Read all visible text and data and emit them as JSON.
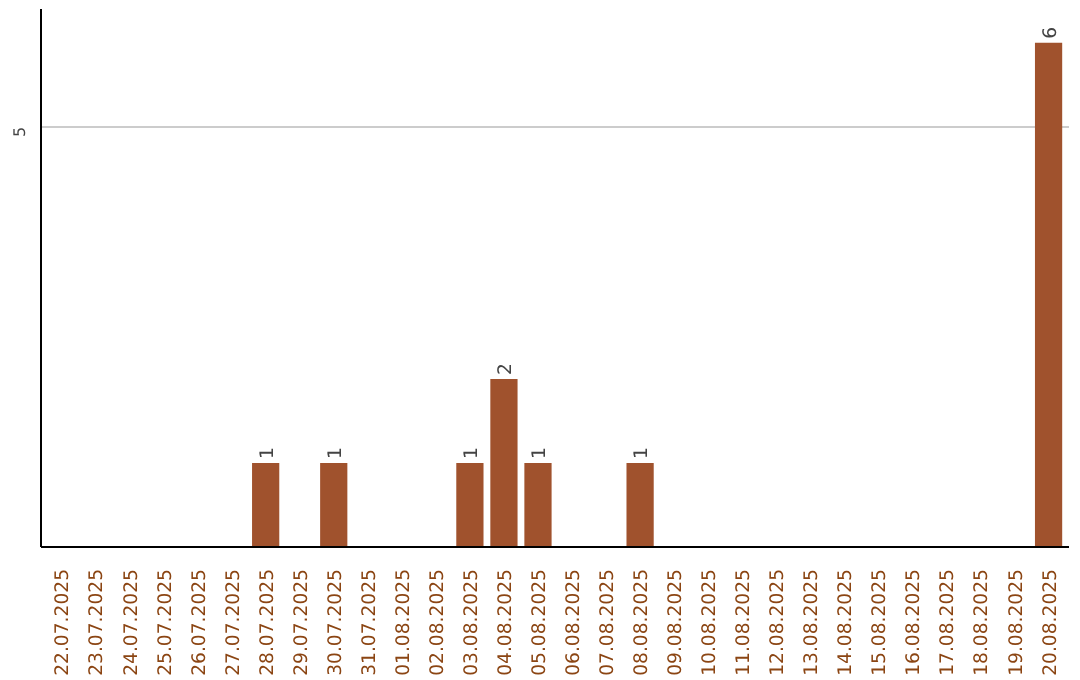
{
  "chart_data": {
    "type": "bar",
    "categories": [
      "22.07.2025",
      "23.07.2025",
      "24.07.2025",
      "25.07.2025",
      "26.07.2025",
      "27.07.2025",
      "28.07.2025",
      "29.07.2025",
      "30.07.2025",
      "31.07.2025",
      "01.08.2025",
      "02.08.2025",
      "03.08.2025",
      "04.08.2025",
      "05.08.2025",
      "06.08.2025",
      "07.08.2025",
      "08.08.2025",
      "09.08.2025",
      "10.08.2025",
      "11.08.2025",
      "12.08.2025",
      "13.08.2025",
      "14.08.2025",
      "15.08.2025",
      "16.08.2025",
      "17.08.2025",
      "18.08.2025",
      "19.08.2025",
      "20.08.2025"
    ],
    "values": [
      0,
      0,
      0,
      0,
      0,
      0,
      1,
      0,
      1,
      0,
      0,
      0,
      1,
      2,
      1,
      0,
      0,
      1,
      0,
      0,
      0,
      0,
      0,
      0,
      0,
      0,
      0,
      0,
      0,
      6
    ],
    "value_labels": [
      null,
      null,
      null,
      null,
      null,
      null,
      "1",
      null,
      "1",
      null,
      null,
      null,
      "1",
      "2",
      "1",
      null,
      null,
      "1",
      null,
      null,
      null,
      null,
      null,
      null,
      null,
      null,
      null,
      null,
      null,
      "6"
    ],
    "color": "#a0522d",
    "ylim": [
      0,
      6.4
    ],
    "yticks": [
      5
    ],
    "grid": "y"
  }
}
